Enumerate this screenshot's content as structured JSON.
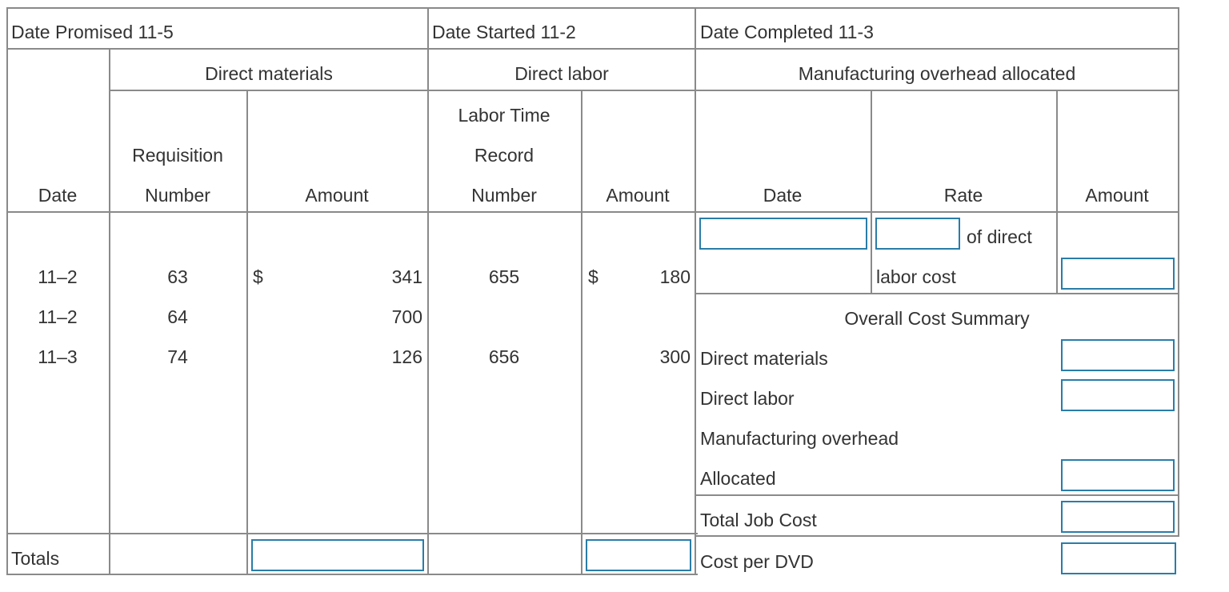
{
  "header": {
    "date_promised": "Date Promised 11-5",
    "date_started": "Date Started 11-2",
    "date_completed": "Date Completed 11-3"
  },
  "groups": {
    "direct_materials": "Direct materials",
    "direct_labor": "Direct labor",
    "overhead": "Manufacturing overhead allocated"
  },
  "columns": {
    "date": "Date",
    "requisition_1": "Requisition",
    "requisition_2": "Number",
    "dm_amount": "Amount",
    "labor_time_1": "Labor Time",
    "labor_time_2": "Record",
    "labor_time_3": "Number",
    "dl_amount": "Amount",
    "moh_date": "Date",
    "moh_rate": "Rate",
    "moh_amount": "Amount"
  },
  "rows": [
    {
      "date": "11–2",
      "req": "63",
      "dm_currency": "$",
      "dm_amount": "341",
      "ltr": "655",
      "dl_currency": "$",
      "dl_amount": "180"
    },
    {
      "date": "11–2",
      "req": "64",
      "dm_currency": "",
      "dm_amount": "700",
      "ltr": "",
      "dl_currency": "",
      "dl_amount": ""
    },
    {
      "date": "11–3",
      "req": "74",
      "dm_currency": "",
      "dm_amount": "126",
      "ltr": "656",
      "dl_currency": "",
      "dl_amount": "300"
    }
  ],
  "overhead_row": {
    "rate_suffix_1": "of direct",
    "rate_suffix_2": "labor cost"
  },
  "summary": {
    "title": "Overall Cost Summary",
    "direct_materials": "Direct materials",
    "direct_labor": "Direct labor",
    "moh_line1": "Manufacturing overhead",
    "moh_line2": "Allocated",
    "total_job_cost": "Total Job Cost",
    "cost_per_dvd": "Cost per DVD"
  },
  "totals_label": "Totals",
  "inputs": {
    "moh_date": "",
    "moh_rate": "",
    "moh_amount": "",
    "summary_dm": "",
    "summary_dl": "",
    "summary_moh": "",
    "total_job_cost": "",
    "cost_per_dvd": "",
    "total_dm": "",
    "total_dl": ""
  }
}
